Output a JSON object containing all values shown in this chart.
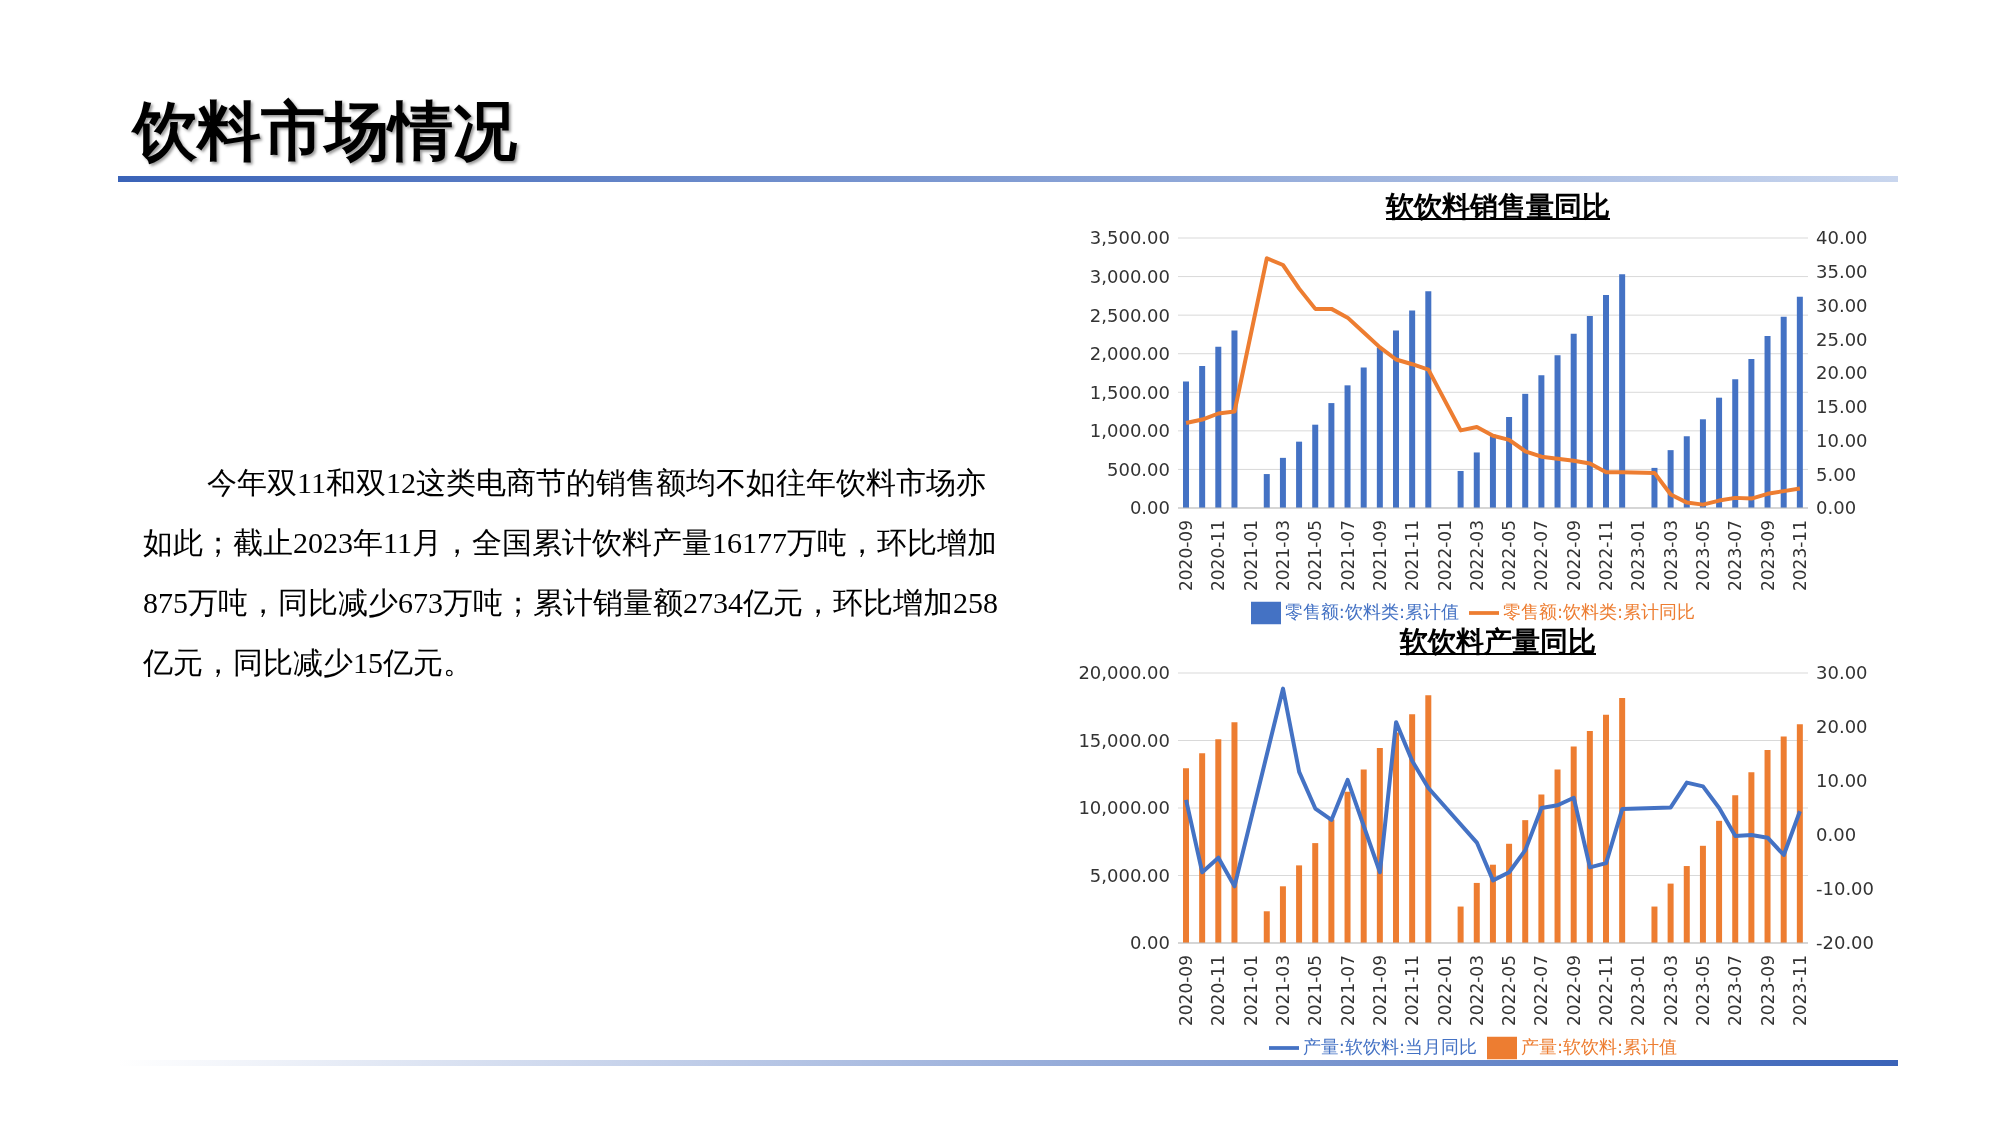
{
  "chart_data": [
    {
      "type": "other",
      "title": "饮料市场情况",
      "annotations": [
        "今年双11和双12这类电商节的销售额均不如往年饮料市场亦如此；截止2023年11月，全国累计饮料产量16177万吨，环比增加875万吨，同比减少673万吨；累计销量额2734亿元，环比增加258亿元，同比减少15亿元。"
      ]
    },
    {
      "type": "bar",
      "title": "软饮料销售量同比",
      "categories": [
        "2020-09",
        null,
        "2020-11",
        null,
        "2021-01",
        null,
        "2021-03",
        null,
        "2021-05",
        null,
        "2021-07",
        null,
        "2021-09",
        null,
        "2021-11",
        null,
        "2022-01",
        null,
        "2022-03",
        null,
        "2022-05",
        null,
        "2022-07",
        null,
        "2022-09",
        null,
        "2022-11",
        null,
        "2023-01",
        null,
        "2023-03",
        null,
        "2023-05",
        null,
        "2023-07",
        null,
        "2023-09",
        null,
        "2023-11"
      ],
      "series": [
        {
          "name": "零售额:饮料类:累计值",
          "type": "bar",
          "color": "#4472c4",
          "values": [
            1640,
            1840,
            2090,
            2300,
            null,
            440,
            650,
            860,
            1080,
            1360,
            1590,
            1820,
            2080,
            2300,
            2560,
            2810,
            null,
            480,
            720,
            950,
            1180,
            1480,
            1720,
            1980,
            2260,
            2490,
            2760,
            3030,
            null,
            520,
            750,
            930,
            1150,
            1430,
            1670,
            1930,
            2230,
            2480,
            2740
          ]
        },
        {
          "name": "零售额:饮料类:累计同比",
          "type": "line",
          "axis": "y2",
          "color": "#ed7d31",
          "values": [
            12.6,
            13.1,
            14.0,
            14.3,
            null,
            37.0,
            36.0,
            32.5,
            29.5,
            29.5,
            28.2,
            26.0,
            23.8,
            22.0,
            21.3,
            20.5,
            null,
            11.5,
            12.0,
            10.7,
            10.1,
            8.4,
            7.6,
            7.3,
            7.0,
            6.6,
            5.3,
            5.3,
            null,
            5.2,
            2.0,
            0.8,
            0.5,
            1.1,
            1.5,
            1.4,
            2.1,
            2.5,
            2.9
          ]
        }
      ],
      "ylim": [
        0,
        3500
      ],
      "yticks": [
        {
          "value": 0,
          "label": "0.00"
        },
        {
          "value": 500,
          "label": "500.00"
        },
        {
          "value": 1000,
          "label": "1,000.00"
        },
        {
          "value": 1500,
          "label": "1,500.00"
        },
        {
          "value": 2000,
          "label": "2,000.00"
        },
        {
          "value": 2500,
          "label": "2,500.00"
        },
        {
          "value": 3000,
          "label": "3,000.00"
        },
        {
          "value": 3500,
          "label": "3,500.00"
        }
      ],
      "y2lim": [
        0,
        40
      ],
      "y2ticks": [
        {
          "value": 0,
          "label": "0.00"
        },
        {
          "value": 5,
          "label": "5.00"
        },
        {
          "value": 10,
          "label": "10.00"
        },
        {
          "value": 15,
          "label": "15.00"
        },
        {
          "value": 20,
          "label": "20.00"
        },
        {
          "value": 25,
          "label": "25.00"
        },
        {
          "value": 30,
          "label": "30.00"
        },
        {
          "value": 35,
          "label": "35.00"
        },
        {
          "value": 40,
          "label": "40.00"
        }
      ],
      "grid": "y",
      "legend": "bottom"
    },
    {
      "type": "bar",
      "title": "软饮料产量同比",
      "categories": [
        "2020-09",
        null,
        "2020-11",
        null,
        "2021-01",
        null,
        "2021-03",
        null,
        "2021-05",
        null,
        "2021-07",
        null,
        "2021-09",
        null,
        "2021-11",
        null,
        "2022-01",
        null,
        "2022-03",
        null,
        "2022-05",
        null,
        "2022-07",
        null,
        "2022-09",
        null,
        "2022-11",
        null,
        "2023-01",
        null,
        "2023-03",
        null,
        "2023-05",
        null,
        "2023-07",
        null,
        "2023-09",
        null,
        "2023-11"
      ],
      "series": [
        {
          "name": "产量:软饮料:累计值",
          "type": "bar",
          "color": "#ed7d31",
          "values": [
            12950,
            14050,
            15100,
            16350,
            null,
            2350,
            4200,
            5750,
            7400,
            9150,
            11200,
            12850,
            14450,
            15600,
            16950,
            18350,
            null,
            2700,
            4450,
            5800,
            7350,
            9100,
            11000,
            12850,
            14550,
            15700,
            16900,
            18150,
            null,
            2700,
            4400,
            5700,
            7200,
            9050,
            10950,
            12650,
            14300,
            15300,
            16200
          ]
        },
        {
          "name": "产量:软饮料:当月同比",
          "type": "line",
          "axis": "y2",
          "color": "#4472c4",
          "values": [
            6.5,
            -6.9,
            -4.2,
            -9.5,
            null,
            null,
            27.1,
            11.7,
            4.9,
            2.8,
            10.2,
            null,
            -6.9,
            20.9,
            13.7,
            8.7,
            null,
            null,
            -1.4,
            -8.4,
            -6.9,
            -2.8,
            5.0,
            5.5,
            6.9,
            -6.0,
            -5.2,
            4.8,
            null,
            null,
            5.1,
            9.7,
            9.0,
            5.0,
            -0.2,
            0.0,
            -0.5,
            -3.7,
            4.4
          ]
        }
      ],
      "ylim": [
        0,
        20000
      ],
      "yticks": [
        {
          "value": 0,
          "label": "0.00"
        },
        {
          "value": 5000,
          "label": "5,000.00"
        },
        {
          "value": 10000,
          "label": "10,000.00"
        },
        {
          "value": 15000,
          "label": "15,000.00"
        },
        {
          "value": 20000,
          "label": "20,000.00"
        }
      ],
      "y2lim": [
        -20,
        30
      ],
      "y2ticks": [
        {
          "value": -20,
          "label": "-20.00"
        },
        {
          "value": -10,
          "label": "-10.00"
        },
        {
          "value": 0,
          "label": "0.00"
        },
        {
          "value": 10,
          "label": "10.00"
        },
        {
          "value": 20,
          "label": "20.00"
        },
        {
          "value": 30,
          "label": "30.00"
        }
      ],
      "grid": "y",
      "legend": "bottom"
    }
  ]
}
